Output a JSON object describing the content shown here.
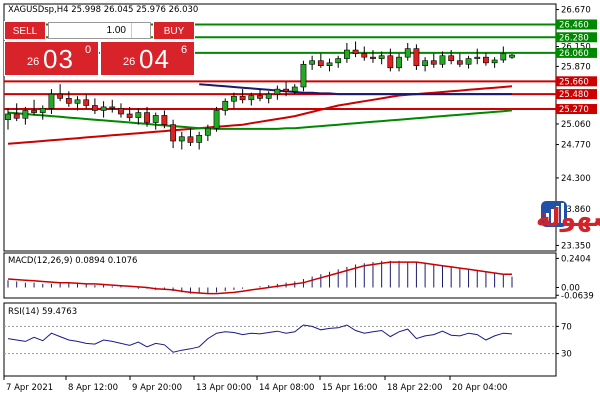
{
  "header": {
    "title": "XAGUSDsp,H4  25.998 26.045 25.976 26.030"
  },
  "trade_panel": {
    "sell_label": "SELL",
    "buy_label": "BUY",
    "lot": "1.00",
    "sell_price": {
      "prefix": "26",
      "big": "03",
      "sup": "0"
    },
    "buy_price": {
      "prefix": "26",
      "big": "04",
      "sup": "6"
    }
  },
  "watermark": {
    "text": "التداول بسهولة"
  },
  "chart_data": [
    {
      "type": "candlestick",
      "title": "XAGUSDsp,H4",
      "ohlc_header": [
        25.998,
        26.045,
        25.976,
        26.03
      ],
      "ylim": [
        23.3,
        26.72
      ],
      "yticks": [
        "26.670",
        "26.460",
        "26.280",
        "26.150",
        "26.060",
        "25.870",
        "25.660",
        "25.480",
        "25.270",
        "25.060",
        "24.770",
        "24.300",
        "23.860",
        "23.350"
      ],
      "xticks": [
        "7 Apr 2021",
        "8 Apr 12:00",
        "9 Apr 20:00",
        "13 Apr 00:00",
        "14 Apr 08:00",
        "15 Apr 16:00",
        "18 Apr 22:00",
        "20 Apr 04:00"
      ],
      "candles": [
        [
          25.12,
          25.28,
          24.98,
          25.2
        ],
        [
          25.2,
          25.35,
          25.1,
          25.14
        ],
        [
          25.14,
          25.3,
          25.05,
          25.25
        ],
        [
          25.25,
          25.4,
          25.18,
          25.22
        ],
        [
          25.22,
          25.32,
          25.12,
          25.28
        ],
        [
          25.28,
          25.55,
          25.2,
          25.48
        ],
        [
          25.48,
          25.62,
          25.38,
          25.42
        ],
        [
          25.42,
          25.52,
          25.3,
          25.35
        ],
        [
          25.35,
          25.45,
          25.25,
          25.4
        ],
        [
          25.4,
          25.48,
          25.28,
          25.32
        ],
        [
          25.32,
          25.42,
          25.2,
          25.25
        ],
        [
          25.25,
          25.38,
          25.15,
          25.3
        ],
        [
          25.3,
          25.4,
          25.22,
          25.28
        ],
        [
          25.28,
          25.35,
          25.15,
          25.2
        ],
        [
          25.2,
          25.3,
          25.1,
          25.15
        ],
        [
          25.15,
          25.28,
          25.05,
          25.22
        ],
        [
          25.22,
          25.3,
          25.02,
          25.08
        ],
        [
          25.08,
          25.22,
          24.98,
          25.18
        ],
        [
          25.18,
          25.25,
          25.0,
          25.05
        ],
        [
          25.05,
          25.12,
          24.72,
          24.82
        ],
        [
          24.82,
          24.95,
          24.7,
          24.88
        ],
        [
          24.88,
          25.0,
          24.75,
          24.8
        ],
        [
          24.8,
          24.95,
          24.7,
          24.9
        ],
        [
          24.9,
          25.05,
          24.82,
          25.0
        ],
        [
          25.0,
          25.3,
          24.95,
          25.25
        ],
        [
          25.25,
          25.42,
          25.18,
          25.38
        ],
        [
          25.38,
          25.5,
          25.28,
          25.45
        ],
        [
          25.45,
          25.55,
          25.35,
          25.4
        ],
        [
          25.4,
          25.5,
          25.32,
          25.46
        ],
        [
          25.46,
          25.55,
          25.38,
          25.42
        ],
        [
          25.42,
          25.52,
          25.35,
          25.48
        ],
        [
          25.48,
          25.6,
          25.4,
          25.55
        ],
        [
          25.55,
          25.65,
          25.45,
          25.52
        ],
        [
          25.52,
          25.62,
          25.48,
          25.58
        ],
        [
          25.58,
          25.95,
          25.52,
          25.9
        ],
        [
          25.9,
          26.02,
          25.82,
          25.95
        ],
        [
          25.95,
          26.05,
          25.85,
          25.88
        ],
        [
          25.88,
          25.98,
          25.8,
          25.92
        ],
        [
          25.92,
          26.02,
          25.85,
          25.98
        ],
        [
          25.98,
          26.2,
          25.92,
          26.1
        ],
        [
          26.1,
          26.22,
          26.0,
          26.05
        ],
        [
          26.05,
          26.15,
          25.95,
          26.0
        ],
        [
          26.0,
          26.1,
          25.92,
          25.98
        ],
        [
          25.98,
          26.08,
          25.9,
          26.02
        ],
        [
          26.02,
          26.12,
          25.8,
          25.85
        ],
        [
          25.85,
          26.05,
          25.8,
          26.0
        ],
        [
          26.0,
          26.2,
          25.95,
          26.12
        ],
        [
          26.12,
          26.18,
          25.82,
          25.88
        ],
        [
          25.88,
          26.0,
          25.8,
          25.95
        ],
        [
          25.95,
          26.05,
          25.85,
          25.9
        ],
        [
          25.9,
          26.08,
          25.85,
          26.02
        ],
        [
          26.02,
          26.1,
          25.9,
          25.95
        ],
        [
          25.95,
          26.05,
          25.86,
          25.9
        ],
        [
          25.9,
          26.02,
          25.84,
          25.98
        ],
        [
          25.98,
          26.12,
          25.9,
          26.0
        ],
        [
          26.0,
          26.06,
          25.88,
          25.92
        ],
        [
          25.92,
          26.0,
          25.85,
          25.96
        ],
        [
          25.96,
          26.15,
          25.92,
          26.05
        ],
        [
          25.998,
          26.045,
          25.976,
          26.03
        ]
      ],
      "moving_averages": [
        {
          "color": "#cc0000",
          "values": [
            24.78,
            24.79,
            24.8,
            24.81,
            24.82,
            24.83,
            24.84,
            24.85,
            24.86,
            24.87,
            24.88,
            24.89,
            24.9,
            24.91,
            24.92,
            24.93,
            24.94,
            24.95,
            24.96,
            24.97,
            24.98,
            24.99,
            25.0,
            25.01,
            25.02,
            25.03,
            25.04,
            25.05,
            25.07,
            25.09,
            25.11,
            25.13,
            25.15,
            25.17,
            25.2,
            25.23,
            25.26,
            25.29,
            25.32,
            25.34,
            25.36,
            25.38,
            25.4,
            25.42,
            25.44,
            25.46,
            25.47,
            25.48,
            25.49,
            25.5,
            25.51,
            25.52,
            25.53,
            25.54,
            25.55,
            25.56,
            25.57,
            25.58,
            25.59
          ]
        },
        {
          "color": "#008800",
          "values": [
            25.22,
            25.21,
            25.2,
            25.19,
            25.18,
            25.17,
            25.16,
            25.15,
            25.14,
            25.13,
            25.12,
            25.11,
            25.1,
            25.09,
            25.08,
            25.07,
            25.06,
            25.05,
            25.04,
            25.03,
            25.02,
            25.01,
            25.0,
            25.0,
            24.99,
            24.99,
            24.99,
            24.99,
            24.99,
            24.99,
            24.99,
            24.99,
            25.0,
            25.0,
            25.01,
            25.02,
            25.03,
            25.04,
            25.05,
            25.06,
            25.07,
            25.08,
            25.09,
            25.1,
            25.11,
            25.12,
            25.13,
            25.14,
            25.15,
            25.16,
            25.17,
            25.18,
            25.19,
            25.2,
            25.21,
            25.22,
            25.23,
            25.24,
            25.25
          ]
        },
        {
          "color": "#1a1a6e",
          "values": [
            null,
            null,
            null,
            null,
            null,
            null,
            null,
            null,
            null,
            null,
            null,
            null,
            null,
            null,
            null,
            null,
            null,
            null,
            null,
            null,
            null,
            null,
            25.62,
            25.61,
            25.6,
            25.59,
            25.58,
            25.57,
            25.56,
            25.55,
            25.54,
            25.53,
            25.52,
            25.51,
            25.5,
            25.5,
            25.49,
            25.49,
            25.48,
            25.48,
            25.48,
            25.48,
            25.48,
            25.48,
            25.48,
            25.48,
            25.48,
            25.48,
            25.48,
            25.48,
            25.48,
            25.48,
            25.48,
            25.48,
            25.48,
            25.48,
            25.48,
            25.48,
            25.48
          ]
        }
      ],
      "horizontal_levels": [
        {
          "label": "26.460",
          "value": 26.46,
          "color": "#008800"
        },
        {
          "label": "26.280",
          "value": 26.28,
          "color": "#008800"
        },
        {
          "label": "26.060",
          "value": 26.06,
          "color": "#008800"
        },
        {
          "label": "25.660",
          "value": 25.66,
          "color": "#cc0000"
        },
        {
          "label": "25.480",
          "value": 25.48,
          "color": "#cc0000"
        },
        {
          "label": "25.270",
          "value": 25.27,
          "color": "#cc0000"
        }
      ]
    },
    {
      "type": "bar",
      "title": "MACD(12,26,9) 0.0894 0.1076",
      "ylim": [
        -0.07,
        0.26
      ],
      "yticks": [
        "0.2404",
        "0.00",
        "-0.0639"
      ],
      "macd": [
        0.06,
        0.05,
        0.04,
        0.04,
        0.03,
        0.03,
        0.04,
        0.04,
        0.03,
        0.03,
        0.02,
        0.02,
        0.01,
        0.01,
        0.0,
        -0.01,
        -0.01,
        -0.02,
        -0.02,
        -0.03,
        -0.04,
        -0.05,
        -0.05,
        -0.05,
        -0.04,
        -0.03,
        -0.02,
        -0.01,
        0.0,
        0.01,
        0.02,
        0.03,
        0.04,
        0.05,
        0.07,
        0.09,
        0.11,
        0.13,
        0.15,
        0.17,
        0.19,
        0.2,
        0.21,
        0.22,
        0.22,
        0.22,
        0.21,
        0.21,
        0.2,
        0.19,
        0.18,
        0.17,
        0.16,
        0.15,
        0.14,
        0.13,
        0.12,
        0.11,
        0.09
      ],
      "signal": [
        0.07,
        0.065,
        0.06,
        0.055,
        0.05,
        0.045,
        0.04,
        0.04,
        0.035,
        0.03,
        0.03,
        0.025,
        0.02,
        0.015,
        0.01,
        0.005,
        0.0,
        -0.01,
        -0.015,
        -0.02,
        -0.03,
        -0.04,
        -0.045,
        -0.05,
        -0.05,
        -0.045,
        -0.04,
        -0.03,
        -0.02,
        -0.01,
        0.0,
        0.01,
        0.02,
        0.03,
        0.04,
        0.06,
        0.08,
        0.1,
        0.12,
        0.14,
        0.16,
        0.18,
        0.19,
        0.2,
        0.21,
        0.21,
        0.21,
        0.21,
        0.2,
        0.19,
        0.18,
        0.17,
        0.16,
        0.15,
        0.14,
        0.13,
        0.12,
        0.11,
        0.11
      ]
    },
    {
      "type": "line",
      "title": "RSI(14) 59.4763",
      "ylim": [
        0,
        100
      ],
      "yticks": [
        "70",
        "30"
      ],
      "values": [
        52,
        50,
        48,
        54,
        49,
        60,
        55,
        50,
        48,
        45,
        44,
        50,
        48,
        45,
        42,
        47,
        40,
        45,
        43,
        32,
        35,
        37,
        40,
        52,
        60,
        62,
        61,
        58,
        60,
        59,
        61,
        63,
        60,
        62,
        72,
        70,
        65,
        67,
        68,
        72,
        64,
        60,
        62,
        64,
        55,
        62,
        66,
        52,
        56,
        58,
        63,
        57,
        56,
        60,
        58,
        50,
        56,
        60,
        59
      ]
    }
  ]
}
